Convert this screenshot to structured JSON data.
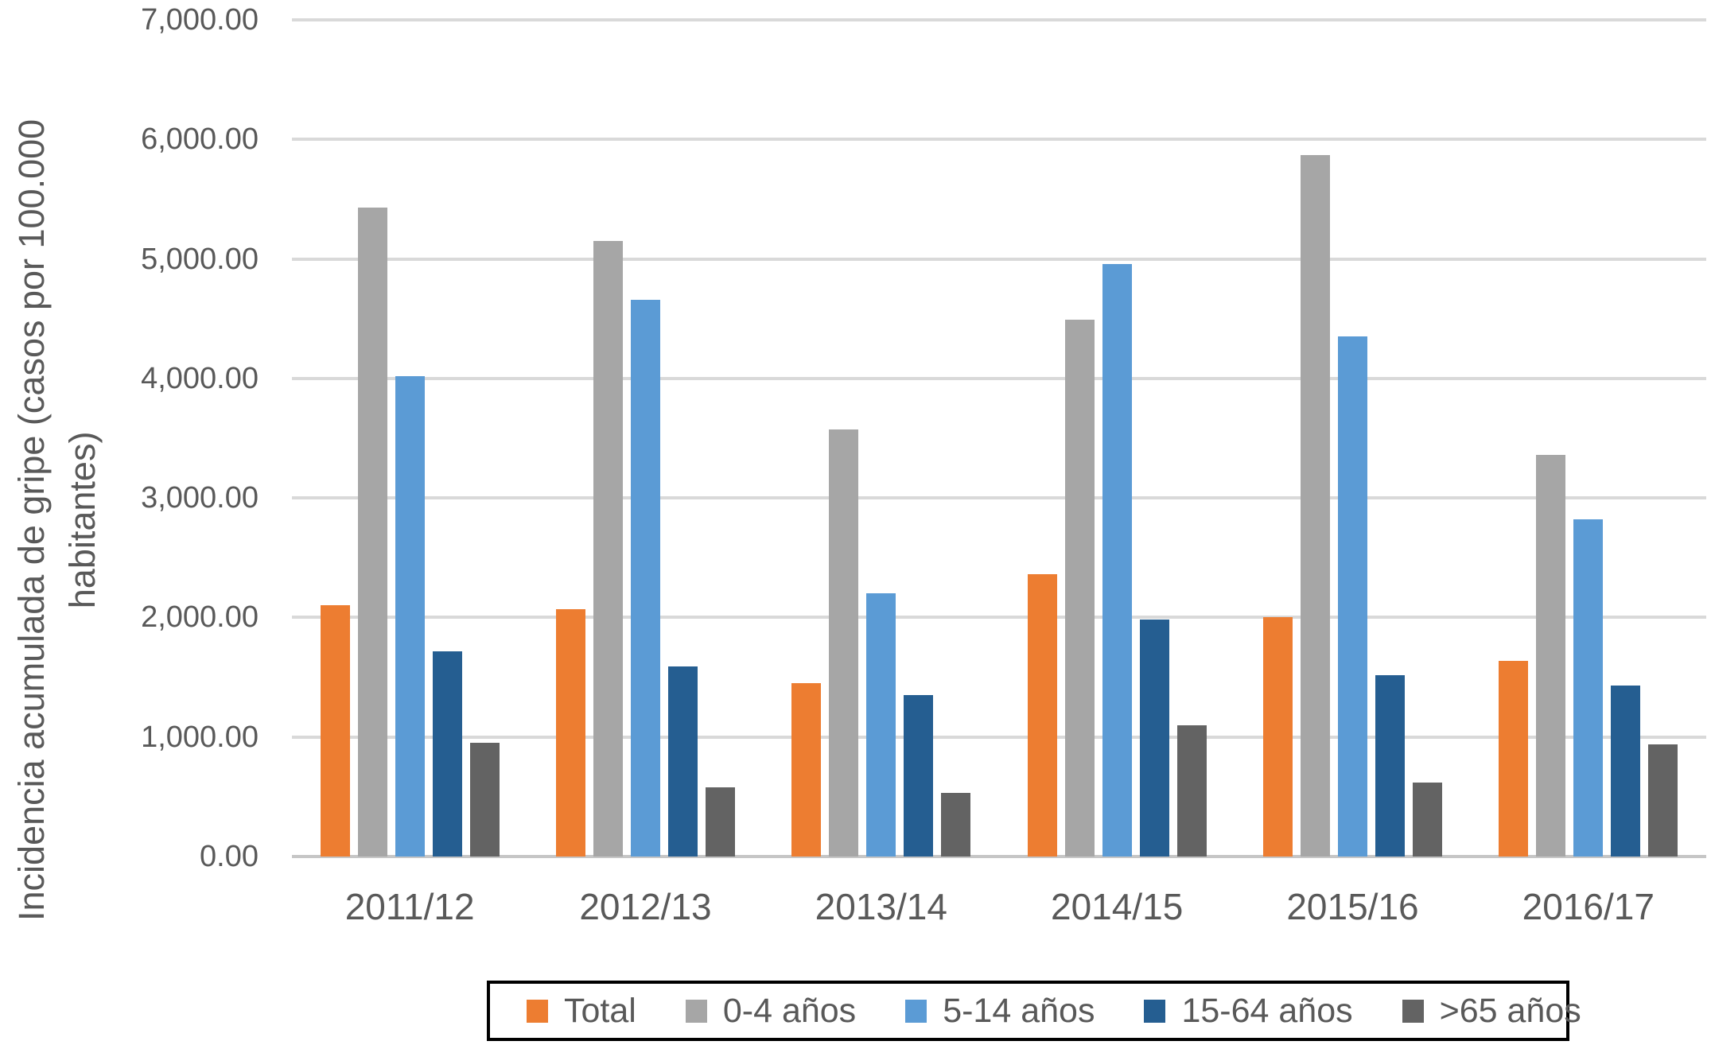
{
  "figure": {
    "y_axis_title_line1": "Incidencia acumulada de gripe (casos por 100.000",
    "y_axis_title_line2": "habitantes)"
  },
  "colors": {
    "text": "#595959",
    "gridline": "#D9D9D9",
    "baseline": "#C6C6C6",
    "legend_border": "#000000",
    "background": "#FFFFFF"
  },
  "chart_data": {
    "type": "bar",
    "title": "",
    "xlabel": "",
    "ylabel": "Incidencia acumulada de gripe (casos por 100.000 habitantes)",
    "ylim": [
      0,
      7000
    ],
    "grid": true,
    "legend_position": "bottom",
    "categories": [
      "2011/12",
      "2012/13",
      "2013/14",
      "2014/15",
      "2015/16",
      "2016/17"
    ],
    "yticks": [
      {
        "value": 0,
        "label": "0.00"
      },
      {
        "value": 1000,
        "label": "1,000.00"
      },
      {
        "value": 2000,
        "label": "2,000.00"
      },
      {
        "value": 3000,
        "label": "3,000.00"
      },
      {
        "value": 4000,
        "label": "4,000.00"
      },
      {
        "value": 5000,
        "label": "5,000.00"
      },
      {
        "value": 6000,
        "label": "6,000.00"
      },
      {
        "value": 7000,
        "label": "7,000.00"
      }
    ],
    "series": [
      {
        "name": "Total",
        "color": "#ED7D31",
        "values": [
          2100,
          2070,
          1450,
          2360,
          2000,
          1640
        ]
      },
      {
        "name": "0-4 años",
        "color": "#A6A6A6",
        "values": [
          5430,
          5150,
          3570,
          4490,
          5870,
          3360
        ]
      },
      {
        "name": "5-14 años",
        "color": "#5B9BD5",
        "values": [
          4020,
          4660,
          2200,
          4960,
          4350,
          2820
        ]
      },
      {
        "name": "15-64 años",
        "color": "#255E91",
        "values": [
          1720,
          1590,
          1350,
          1980,
          1520,
          1430
        ]
      },
      {
        "name": ">65 años",
        "color": "#636363",
        "values": [
          950,
          580,
          530,
          1100,
          620,
          940
        ]
      }
    ]
  }
}
